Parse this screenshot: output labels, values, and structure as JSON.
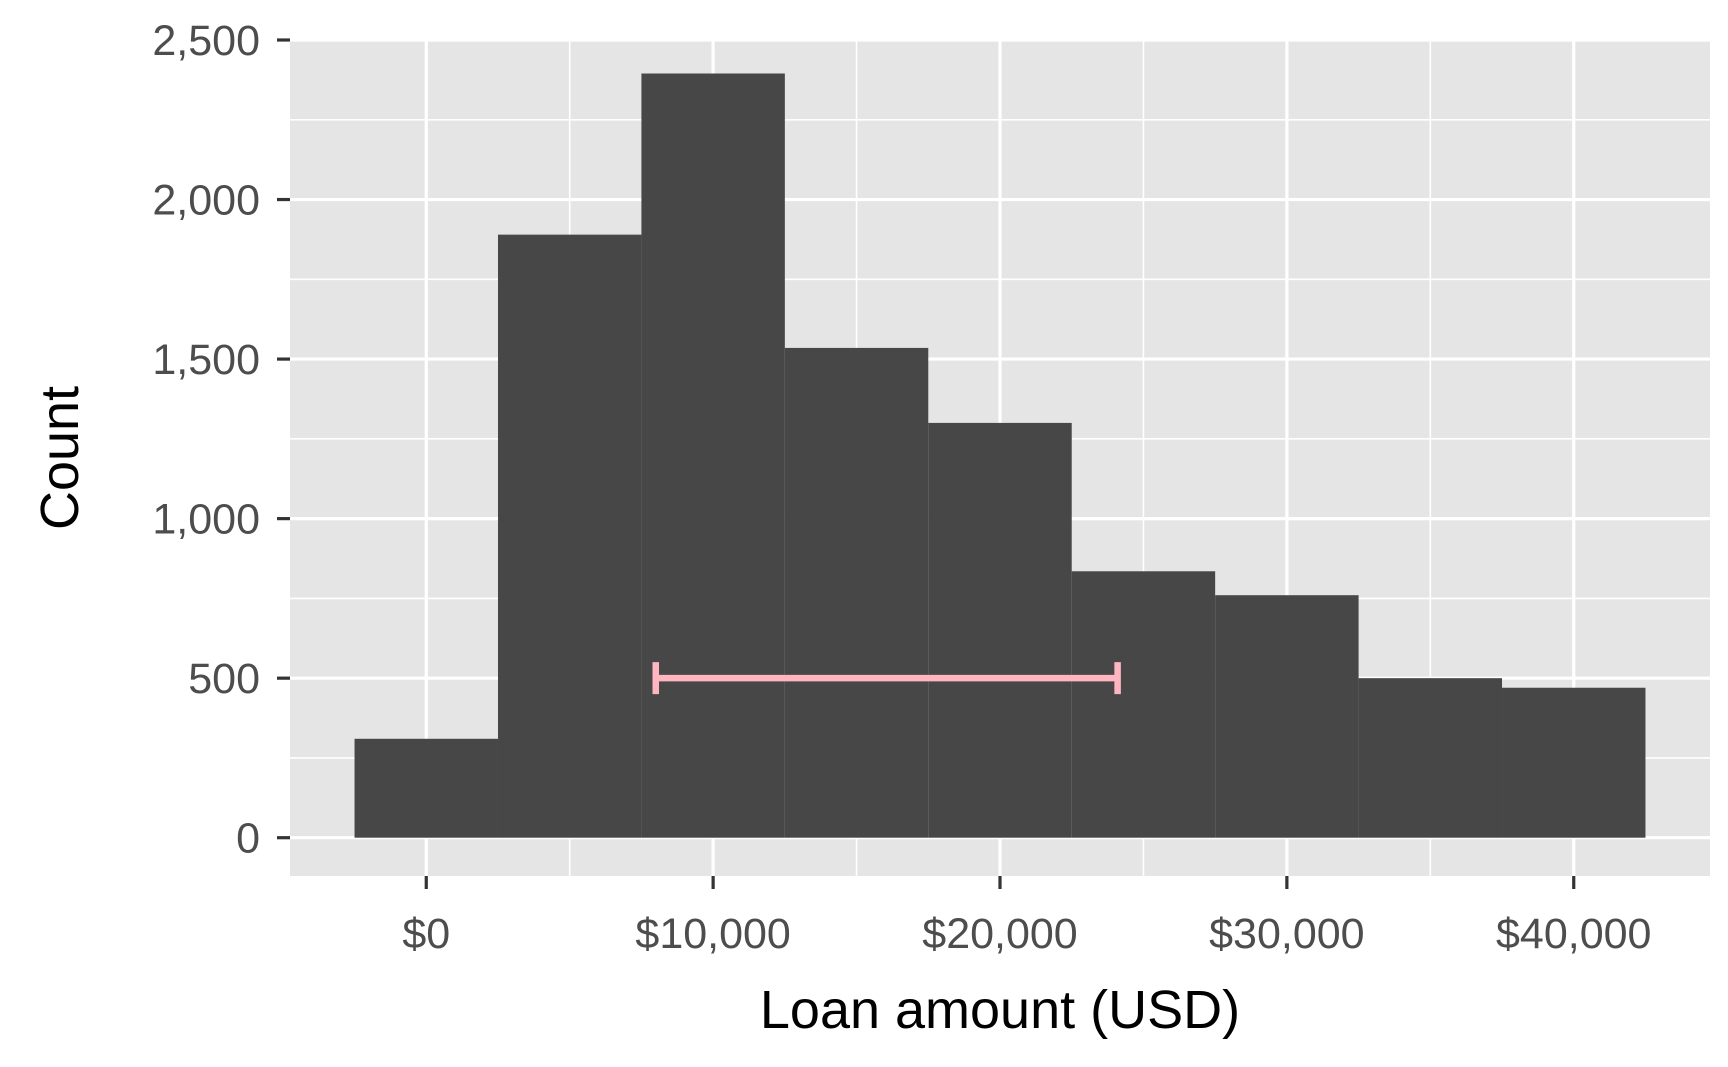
{
  "chart_data": {
    "type": "histogram",
    "title": "",
    "xlabel": "Loan amount (USD)",
    "ylabel": "Count",
    "xlim": [
      -4750,
      44750
    ],
    "ylim": [
      -120,
      2500
    ],
    "x_ticks": [
      0,
      10000,
      20000,
      30000,
      40000
    ],
    "x_tick_labels": [
      "$0",
      "$10,000",
      "$20,000",
      "$30,000",
      "$40,000"
    ],
    "y_ticks": [
      0,
      500,
      1000,
      1500,
      2000,
      2500
    ],
    "y_tick_labels": [
      "0",
      "500",
      "1,000",
      "1,500",
      "2,000",
      "2,500"
    ],
    "bins": [
      {
        "x_start": -2500,
        "x_end": 2500,
        "count": 310
      },
      {
        "x_start": 2500,
        "x_end": 7500,
        "count": 1890
      },
      {
        "x_start": 7500,
        "x_end": 12500,
        "count": 2395
      },
      {
        "x_start": 12500,
        "x_end": 17500,
        "count": 1535
      },
      {
        "x_start": 17500,
        "x_end": 22500,
        "count": 1300
      },
      {
        "x_start": 22500,
        "x_end": 27500,
        "count": 835
      },
      {
        "x_start": 27500,
        "x_end": 32500,
        "count": 760
      },
      {
        "x_start": 32500,
        "x_end": 37500,
        "count": 500
      },
      {
        "x_start": 37500,
        "x_end": 42500,
        "count": 470
      }
    ],
    "interval": {
      "x_start": 8000,
      "x_end": 24100,
      "y": 500
    },
    "grid": true,
    "colors": {
      "panel": "#e5e5e5",
      "grid": "#ffffff",
      "bar": "#474747",
      "interval": "#ffb6c1"
    }
  }
}
